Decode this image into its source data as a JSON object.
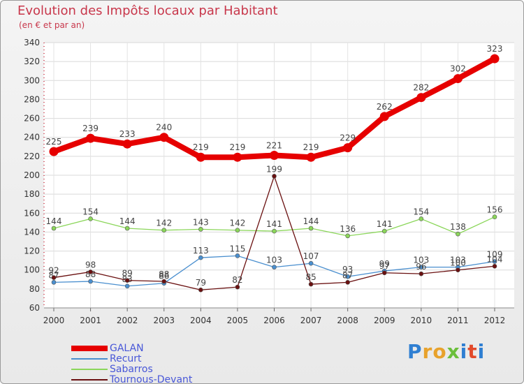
{
  "title": "Evolution des Impôts locaux par Habitant",
  "subtitle": "(en € et par an)",
  "logo": {
    "letters": [
      "P",
      "r",
      "o",
      "x",
      "i",
      "t",
      "i"
    ],
    "colors": [
      "#2f7fd2",
      "#e8a22c",
      "#e8a22c",
      "#6bbf3b",
      "#2f7fd2",
      "#e24a2b",
      "#2f7fd2"
    ]
  },
  "chart_data": {
    "type": "line",
    "x": [
      "2000",
      "2001",
      "2002",
      "2003",
      "2004",
      "2005",
      "2006",
      "2007",
      "2008",
      "2009",
      "2010",
      "2011",
      "2012"
    ],
    "ylim": [
      60,
      340
    ],
    "yticks": [
      60,
      80,
      100,
      120,
      140,
      160,
      180,
      200,
      220,
      240,
      260,
      280,
      300,
      320,
      340
    ],
    "grid": true,
    "series": [
      {
        "name": "GALAN",
        "color": "#e60000",
        "values": [
          225,
          239,
          233,
          240,
          219,
          219,
          221,
          219,
          229,
          262,
          282,
          302,
          323
        ]
      },
      {
        "name": "Recurt",
        "color": "#4a8fcf",
        "values": [
          87,
          88,
          83,
          86,
          113,
          115,
          103,
          107,
          93,
          99,
          103,
          103,
          109
        ]
      },
      {
        "name": "Sabarros",
        "color": "#8bd65a",
        "values": [
          144,
          154,
          144,
          142,
          143,
          142,
          141,
          144,
          136,
          141,
          154,
          138,
          156
        ]
      },
      {
        "name": "Tournous-Devant",
        "color": "#6a1010",
        "values": [
          92,
          98,
          89,
          88,
          79,
          82,
          199,
          85,
          87,
          97,
          96,
          100,
          104
        ]
      }
    ]
  }
}
